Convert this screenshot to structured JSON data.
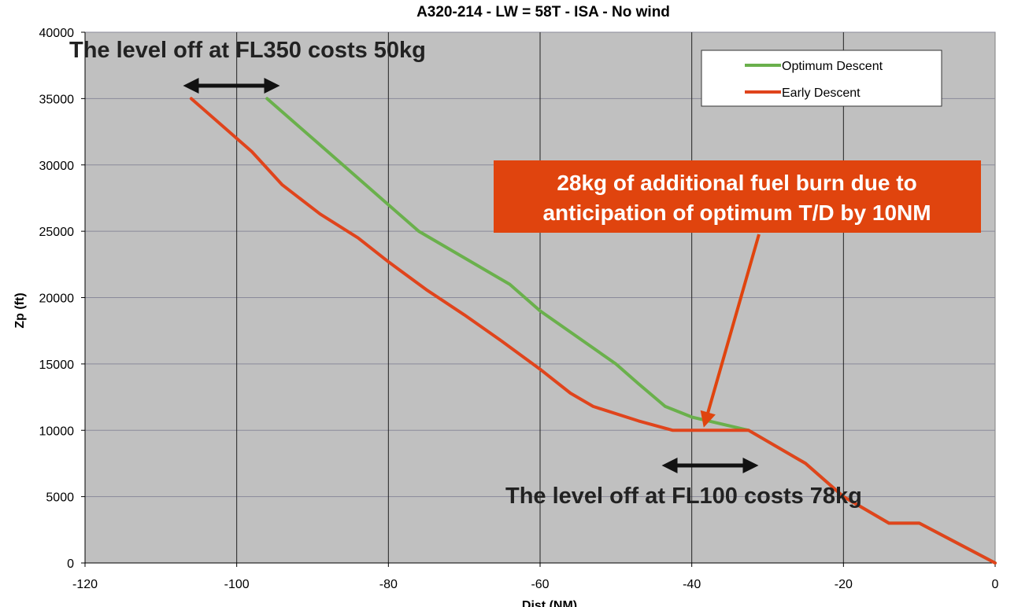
{
  "chart_data": {
    "type": "line",
    "title": "A320-214 - LW = 58T - ISA - No wind",
    "xlabel": "Dist (NM)",
    "ylabel": "Zp (ft)",
    "xlim": [
      -120,
      0
    ],
    "ylim": [
      0,
      40000
    ],
    "x_ticks": [
      -120,
      -100,
      -80,
      -60,
      -40,
      -20,
      0
    ],
    "y_ticks": [
      0,
      5000,
      10000,
      15000,
      20000,
      25000,
      30000,
      35000,
      40000
    ],
    "grid": true,
    "legend_position": "top-right",
    "series": [
      {
        "name": "Optimum Descent",
        "color": "#6ab04c",
        "points": [
          [
            -96,
            35000
          ],
          [
            -92,
            33000
          ],
          [
            -88,
            31000
          ],
          [
            -84,
            29000
          ],
          [
            -80,
            27000
          ],
          [
            -76,
            25000
          ],
          [
            -70,
            23000
          ],
          [
            -64,
            21000
          ],
          [
            -60,
            19000
          ],
          [
            -55,
            17000
          ],
          [
            -50,
            15000
          ],
          [
            -47,
            13500
          ],
          [
            -43.5,
            11800
          ],
          [
            -40,
            11000
          ],
          [
            -32.5,
            10000
          ],
          [
            -25,
            7500
          ],
          [
            -20,
            5000
          ],
          [
            -14,
            3000
          ],
          [
            -10,
            3000
          ],
          [
            -5,
            1500
          ],
          [
            0,
            0
          ]
        ]
      },
      {
        "name": "Early Descent",
        "color": "#e0441c",
        "points": [
          [
            -106,
            35000
          ],
          [
            -102,
            33000
          ],
          [
            -98,
            31000
          ],
          [
            -94,
            28500
          ],
          [
            -89,
            26300
          ],
          [
            -84,
            24500
          ],
          [
            -80,
            22700
          ],
          [
            -75,
            20600
          ],
          [
            -70,
            18700
          ],
          [
            -65,
            16700
          ],
          [
            -60,
            14600
          ],
          [
            -56,
            12800
          ],
          [
            -53,
            11800
          ],
          [
            -47,
            10700
          ],
          [
            -42.5,
            10000
          ],
          [
            -32.5,
            10000
          ],
          [
            -25,
            7500
          ],
          [
            -20,
            5000
          ],
          [
            -14,
            3000
          ],
          [
            -10,
            3000
          ],
          [
            -5,
            1500
          ],
          [
            0,
            0
          ]
        ]
      }
    ],
    "annotations": {
      "fl350": "The level off at FL350 costs 50kg",
      "fl100": "The level off at FL100 costs 78kg",
      "callout_line1": "28kg of additional fuel burn due to",
      "callout_line2": "anticipation of optimum T/D by 10NM"
    },
    "callout_color": "#e0440e",
    "plot_background": "#c0c0c0"
  }
}
